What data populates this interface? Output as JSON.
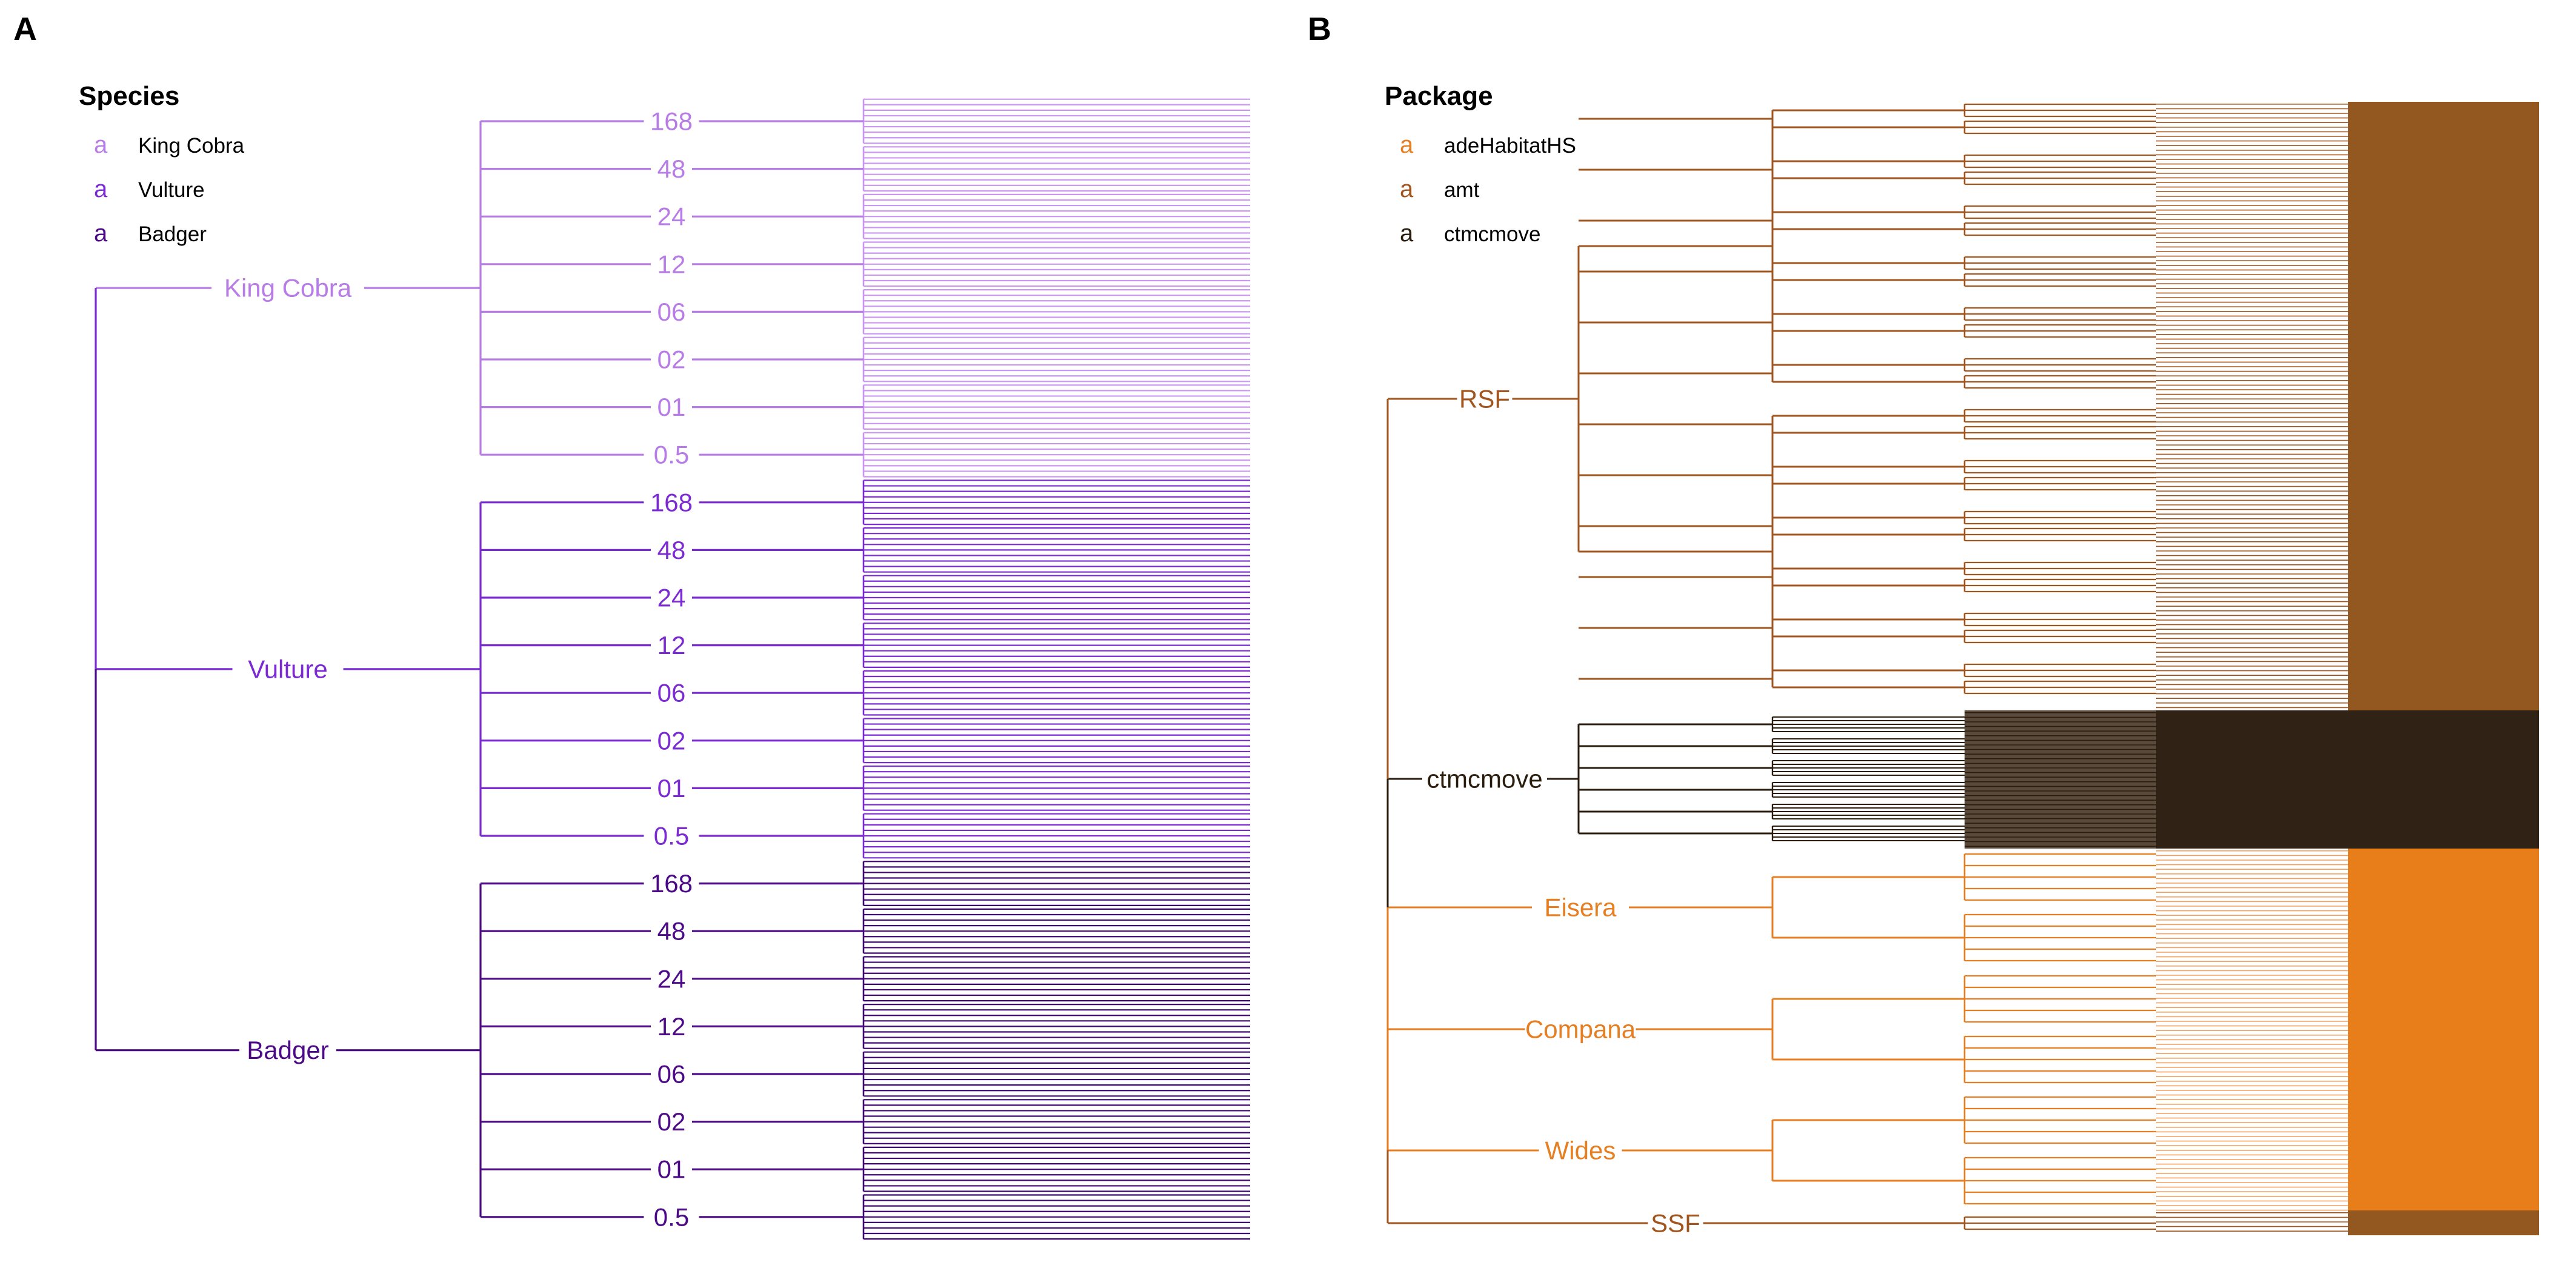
{
  "panels": [
    {
      "letter": "A",
      "legend": {
        "title": "Species",
        "key_glyph": "a",
        "items": [
          {
            "label": "King Cobra",
            "color": "#B77CE6"
          },
          {
            "label": "Vulture",
            "color": "#7B2BD1"
          },
          {
            "label": "Badger",
            "color": "#4C0A86"
          }
        ]
      },
      "tree": {
        "groups": [
          {
            "name": "King Cobra",
            "color": "#B77CE6",
            "leaf_color": "#C996F0",
            "sub_labels": [
              "168",
              "48",
              "24",
              "12",
              "06",
              "02",
              "01",
              "0.5"
            ]
          },
          {
            "name": "Vulture",
            "color": "#7B2BD1",
            "leaf_color": "#7B2BD1",
            "sub_labels": [
              "168",
              "48",
              "24",
              "12",
              "06",
              "02",
              "01",
              "0.5"
            ]
          },
          {
            "name": "Badger",
            "color": "#4C0A86",
            "leaf_color": "#3E0770",
            "sub_labels": [
              "168",
              "48",
              "24",
              "12",
              "06",
              "02",
              "01",
              "0.5"
            ]
          }
        ]
      }
    },
    {
      "letter": "B",
      "legend": {
        "title": "Package",
        "key_glyph": "a",
        "items": [
          {
            "label": "adeHabitatHS",
            "color": "#E67E22"
          },
          {
            "label": "amt",
            "color": "#A0561E"
          },
          {
            "label": "ctmcmove",
            "color": "#2B1D0E"
          }
        ]
      },
      "tree": {
        "groups": [
          {
            "name": "RSF",
            "color": "#A0561E",
            "band_color": "#93581F"
          },
          {
            "name": "ctmcmove",
            "color": "#2B1D0E",
            "band_color": "#302214"
          },
          {
            "name": "Eisera",
            "color": "#E67E22",
            "band_color": "#E87E1A"
          },
          {
            "name": "Compana",
            "color": "#E67E22",
            "band_color": "#E87E1A"
          },
          {
            "name": "Wides",
            "color": "#E67E22",
            "band_color": "#E87E1A"
          },
          {
            "name": "SSF",
            "color": "#A0561E",
            "band_color": "#93581F"
          }
        ]
      }
    }
  ]
}
